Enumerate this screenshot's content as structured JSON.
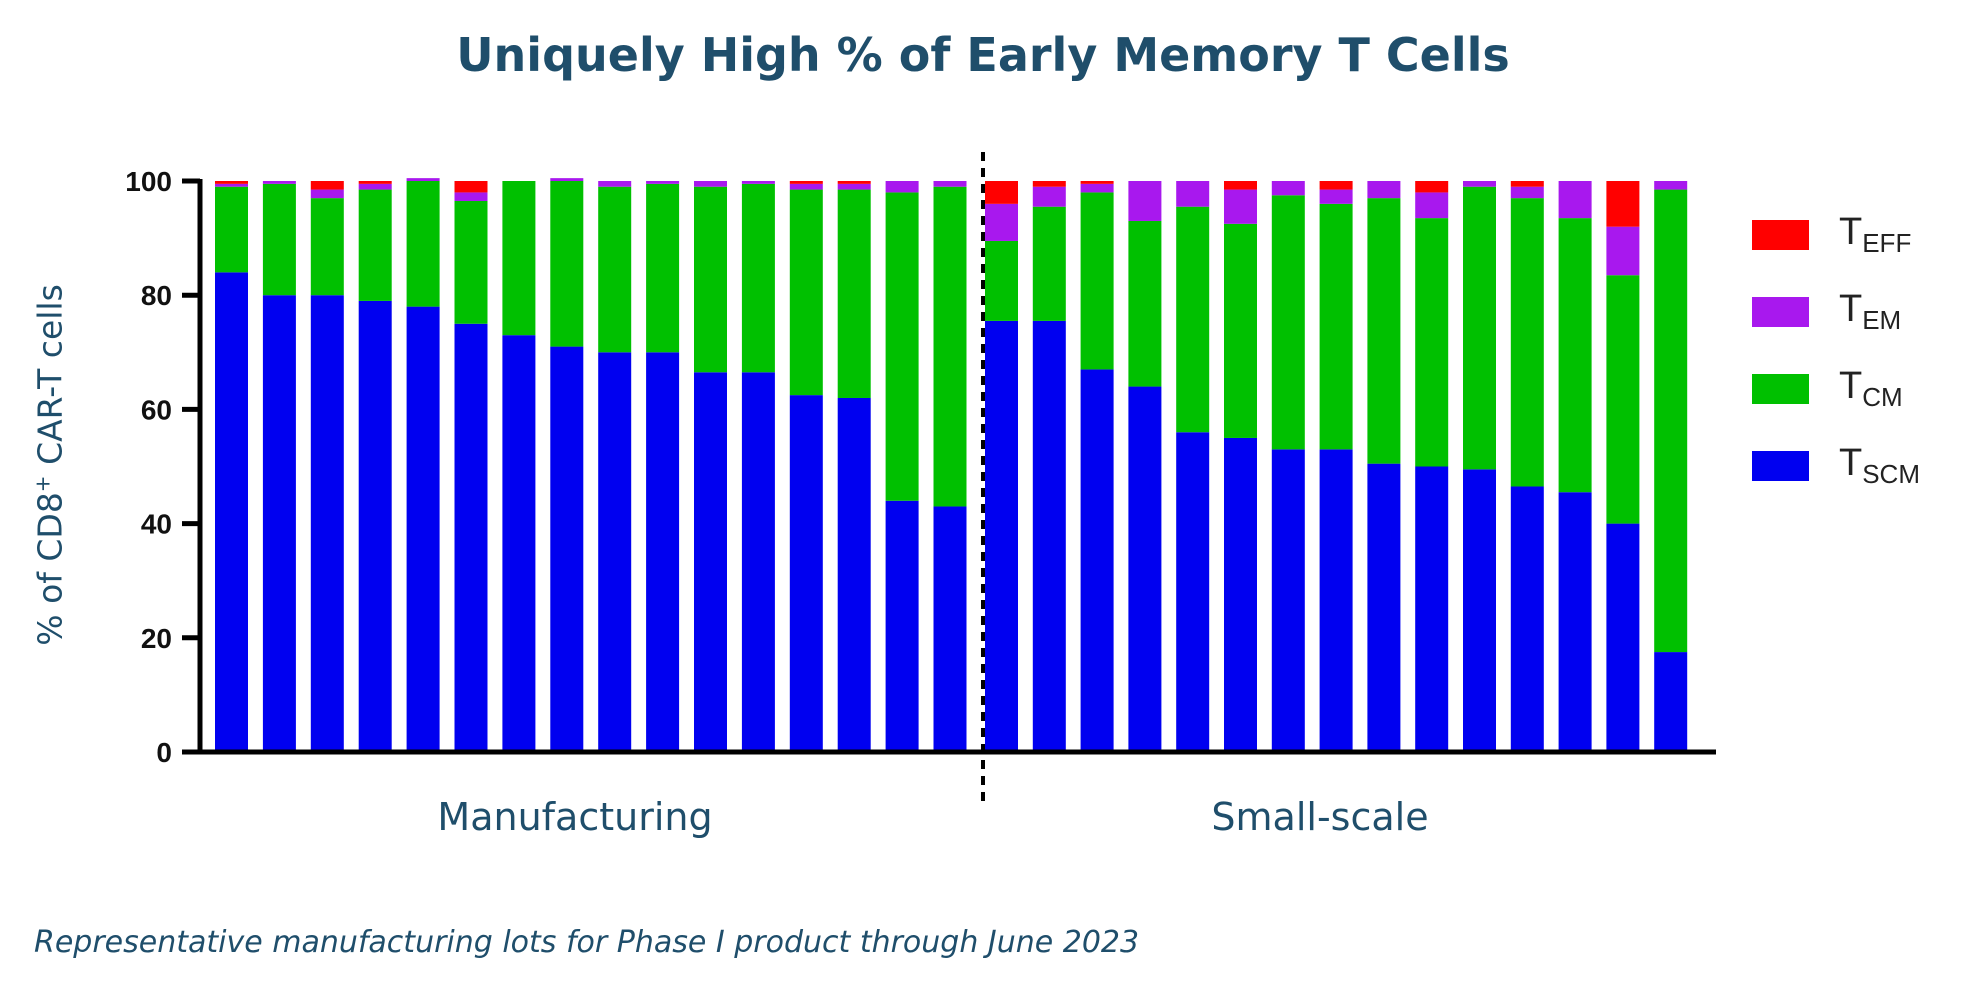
{
  "title": "Uniquely High % of Early Memory T Cells",
  "footnote": "Representative manufacturing lots for Phase I product through June 2023",
  "chart_data": {
    "type": "stacked-bar",
    "ylabel_main": "% of CD8",
    "ylabel_sup": "+",
    "ylabel_rest": " CAR-T cells",
    "ylim": [
      0,
      100
    ],
    "yticks": [
      "0",
      "20",
      "40",
      "60",
      "80",
      "100"
    ],
    "groups": [
      {
        "label": "Manufacturing",
        "count": 16
      },
      {
        "label": "Small-scale",
        "count": 15
      }
    ],
    "series": [
      {
        "key": "TSCM",
        "main": "T",
        "sub": "SCM",
        "color": "#0000f0",
        "values": [
          84,
          80,
          80,
          79,
          78,
          75,
          73,
          71,
          70,
          70,
          66.5,
          66.5,
          62.5,
          62,
          44,
          43,
          75.5,
          75.5,
          67,
          64,
          56,
          55,
          53,
          53,
          50.5,
          50,
          49.5,
          46.5,
          45.5,
          40,
          17.5
        ]
      },
      {
        "key": "TCM",
        "main": "T",
        "sub": "CM",
        "color": "#00c000",
        "values": [
          15,
          19.5,
          17,
          19.5,
          22,
          21.5,
          27,
          29,
          29,
          29.5,
          32.5,
          33,
          36,
          36.5,
          54,
          56,
          14,
          20,
          31,
          29,
          39.5,
          37.5,
          44.5,
          43,
          46.5,
          43.5,
          49.5,
          50.5,
          48,
          43.5,
          81
        ]
      },
      {
        "key": "TEM",
        "main": "T",
        "sub": "EM",
        "color": "#a818ee",
        "values": [
          0.5,
          0.5,
          1.5,
          1,
          0.5,
          1.5,
          0,
          0.5,
          1,
          0.5,
          1,
          0.5,
          1,
          1,
          2,
          1,
          6.5,
          3.5,
          1.5,
          7,
          4.5,
          6,
          2.5,
          2.5,
          3,
          4.5,
          1,
          2,
          6.5,
          8.5,
          1.5
        ]
      },
      {
        "key": "TEFF",
        "main": "T",
        "sub": "EFF",
        "color": "#ff0000",
        "values": [
          0.5,
          0,
          1.5,
          0.5,
          0,
          2,
          0,
          0,
          0,
          0,
          0,
          0,
          0.5,
          0.5,
          0,
          0,
          4,
          1,
          0.5,
          0,
          0,
          1.5,
          0,
          1.5,
          0,
          2,
          0,
          1,
          0,
          8,
          0
        ]
      }
    ],
    "legend_order": [
      "TEFF",
      "TEM",
      "TCM",
      "TSCM"
    ]
  }
}
